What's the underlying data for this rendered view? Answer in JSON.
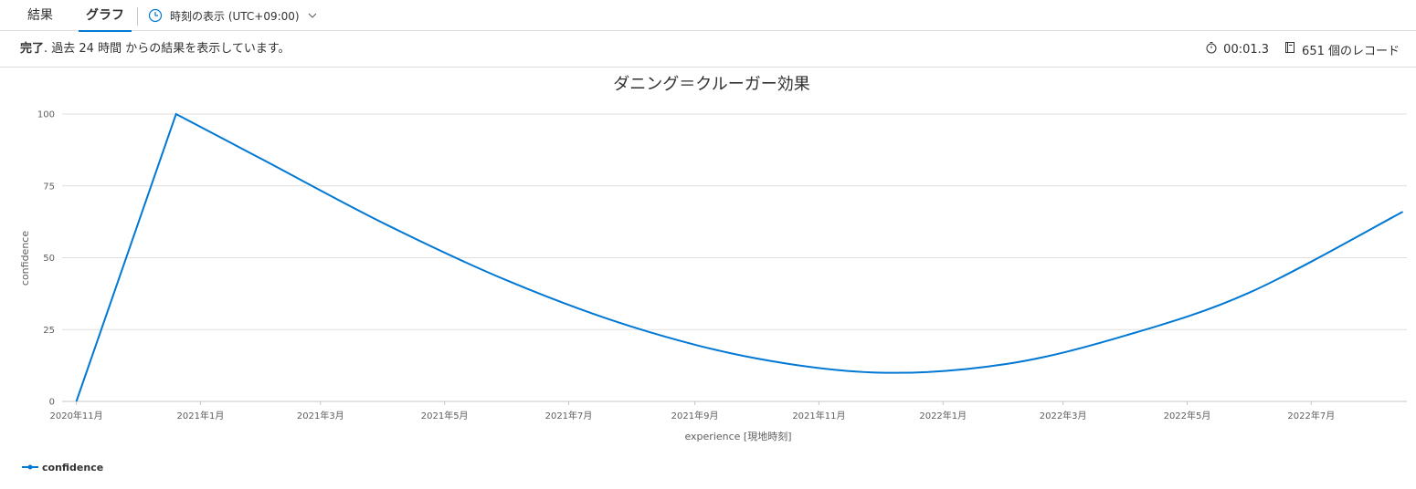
{
  "tabs": {
    "results": "結果",
    "chart": "グラフ"
  },
  "timezone": {
    "label": "時刻の表示 (UTC+09:00)",
    "icon": "clock-icon",
    "chevron": "chevron-down-icon"
  },
  "status": {
    "done": "完了",
    "message": ". 過去 24 時間 からの結果を表示しています。",
    "duration": "00:01.3",
    "records": "651 個のレコード"
  },
  "colors": {
    "accent": "#0078d4",
    "series": "#0078d4",
    "grid": "#e1dfdd"
  },
  "chart_data": {
    "type": "line",
    "title": "ダニング＝クルーガー効果",
    "xlabel": "experience [現地時刻]",
    "ylabel": "confidence",
    "ylim": [
      0,
      100
    ],
    "yticks": [
      0,
      25,
      50,
      75,
      100
    ],
    "xticks": [
      "2020年11月",
      "2021年1月",
      "2021年3月",
      "2021年5月",
      "2021年7月",
      "2021年9月",
      "2021年11月",
      "2022年1月",
      "2022年3月",
      "2022年5月",
      "2022年7月"
    ],
    "grid": true,
    "legend_position": "bottom-left",
    "series": [
      {
        "name": "confidence",
        "x": [
          "2020-11-01",
          "2020-12-20",
          "2021-02-01",
          "2021-04-01",
          "2021-06-01",
          "2021-08-01",
          "2021-10-01",
          "2021-12-01",
          "2022-02-01",
          "2022-04-01",
          "2022-06-01",
          "2022-08-15"
        ],
        "values": [
          0,
          100,
          84,
          62,
          42,
          26,
          15,
          10,
          13,
          23,
          38,
          66
        ]
      }
    ]
  }
}
